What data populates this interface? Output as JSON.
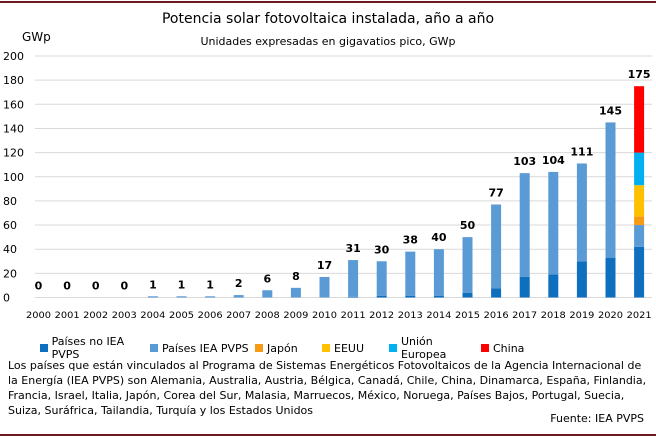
{
  "chart_data": {
    "type": "bar",
    "stacked": true,
    "title": "Potencia solar fotovoltaica instalada, año a año",
    "subtitle": "Unidades expresadas en gigavatios pico, GWp",
    "ylabel": "GWp",
    "ylim": [
      0,
      200
    ],
    "yticks": [
      0,
      20,
      40,
      60,
      80,
      100,
      120,
      140,
      160,
      180,
      200
    ],
    "grid": true,
    "legend_position": "bottom",
    "categories": [
      "2000",
      "2001",
      "2002",
      "2003",
      "2004",
      "2005",
      "2006",
      "2007",
      "2008",
      "2009",
      "2010",
      "2011",
      "2012",
      "2013",
      "2014",
      "2015",
      "2016",
      "2017",
      "2018",
      "2019",
      "2020",
      "2021"
    ],
    "totals": [
      0,
      0,
      0,
      0,
      1,
      1,
      1,
      2,
      6,
      8,
      17,
      31,
      30,
      38,
      40,
      50,
      77,
      103,
      104,
      111,
      145,
      175
    ],
    "series": [
      {
        "name": "Países no IEA PVPS",
        "color": "#0f6fbf",
        "values": [
          0,
          0,
          0,
          0,
          0,
          0,
          0,
          0,
          0,
          0,
          0,
          0.5,
          1.5,
          1.5,
          1.5,
          4,
          7.5,
          17,
          19,
          30,
          33,
          42
        ]
      },
      {
        "name": "Países IEA PVPS",
        "color": "#5b9bd5",
        "values": [
          0,
          0,
          0,
          0,
          1,
          1,
          1,
          2,
          6,
          8,
          17,
          30.5,
          28.5,
          36.5,
          38.5,
          46,
          69.5,
          86,
          85,
          81,
          112,
          18
        ]
      },
      {
        "name": "Japón",
        "color": "#f79a14",
        "values": [
          0,
          0,
          0,
          0,
          0,
          0,
          0,
          0,
          0,
          0,
          0,
          0,
          0,
          0,
          0,
          0,
          0,
          0,
          0,
          0,
          0,
          7
        ]
      },
      {
        "name": "EEUU",
        "color": "#ffc000",
        "values": [
          0,
          0,
          0,
          0,
          0,
          0,
          0,
          0,
          0,
          0,
          0,
          0,
          0,
          0,
          0,
          0,
          0,
          0,
          0,
          0,
          0,
          26
        ]
      },
      {
        "name": "Unión Europea",
        "color": "#00b0f0",
        "values": [
          0,
          0,
          0,
          0,
          0,
          0,
          0,
          0,
          0,
          0,
          0,
          0,
          0,
          0,
          0,
          0,
          0,
          0,
          0,
          0,
          0,
          27
        ]
      },
      {
        "name": "China",
        "color": "#ff0000",
        "values": [
          0,
          0,
          0,
          0,
          0,
          0,
          0,
          0,
          0,
          0,
          0,
          0,
          0,
          0,
          0,
          0,
          0,
          0,
          0,
          0,
          0,
          55
        ]
      }
    ]
  },
  "note": "Los  países  que están vinculados al Programa de Sistemas Energéticos Fotovoltaicos de la Agencia Internacional de la Energía (IEA PVPS) son Alemania, Australia, Austria, Bélgica, Canadá, Chile, China, Dinamarca, España, Finlandia, Francia, Israel, Italia, Japón, Corea del Sur, Malasia, Marruecos, México, Noruega, Países Bajos, Portugal, Suecia, Suiza, Suráfrica, Tailandia, Turquía y los Estados Unidos",
  "source": "Fuente: IEA PVPS"
}
